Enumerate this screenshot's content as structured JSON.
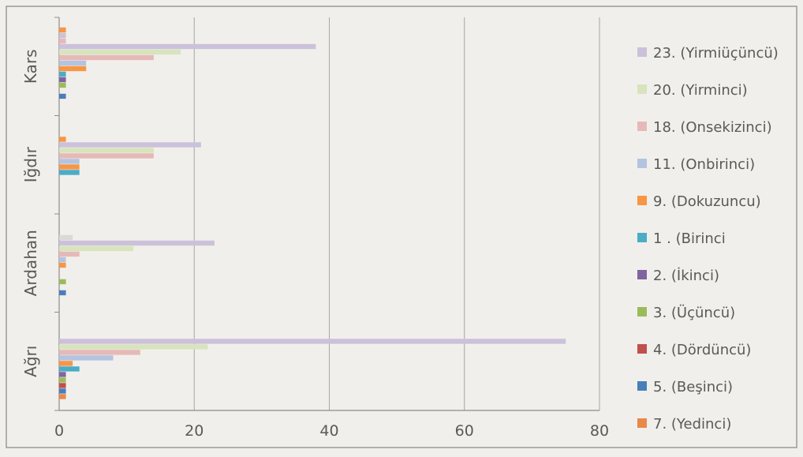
{
  "chart_data": {
    "type": "bar",
    "orientation": "horizontal",
    "categories": [
      "Ağrı",
      "Ardahan",
      "Iğdır",
      "Kars"
    ],
    "xlim": [
      0,
      80
    ],
    "xticks": [
      "0",
      "20",
      "40",
      "60",
      "80"
    ],
    "grid": true,
    "legend_position": "right",
    "series": [
      {
        "name": "7. (Yedinci)",
        "color": "#e8894a",
        "values": [
          1,
          0,
          0,
          0
        ]
      },
      {
        "name": "5. (Beşinci)",
        "color": "#4a7ebb",
        "values": [
          1,
          1,
          0,
          1
        ]
      },
      {
        "name": "4. (Dördüncü)",
        "color": "#c0504d",
        "values": [
          1,
          0,
          0,
          0
        ]
      },
      {
        "name": "3. (Üçüncü)",
        "color": "#9bbb59",
        "values": [
          1,
          1,
          0,
          1
        ]
      },
      {
        "name": "2. (İkinci)",
        "color": "#8064a2",
        "values": [
          1,
          0,
          0,
          1
        ]
      },
      {
        "name": "1 . (Birinci",
        "color": "#4bacc6",
        "values": [
          3,
          0,
          3,
          1
        ]
      },
      {
        "name": "9. (Dokuzuncu)",
        "color": "#f79646",
        "values": [
          2,
          1,
          3,
          4
        ]
      },
      {
        "name": "11. (Onbirinci)",
        "color": "#b3c4e0",
        "values": [
          8,
          1,
          3,
          4
        ]
      },
      {
        "name": "18. (Onsekizinci)",
        "color": "#e6b9b8",
        "values": [
          12,
          3,
          14,
          14
        ]
      },
      {
        "name": "20. (Yirminci)",
        "color": "#d7e4bd",
        "values": [
          22,
          11,
          14,
          18
        ]
      },
      {
        "name": "23. (Yirmiüçüncü)",
        "color": "#ccc1da",
        "values": [
          75,
          23,
          21,
          38
        ]
      }
    ],
    "extra_bars": [
      {
        "category": "Kars",
        "color": "#e6b9b8",
        "value": 1
      },
      {
        "category": "Kars",
        "color": "#ccc1da",
        "value": 1
      },
      {
        "category": "Kars",
        "color": "#f79646",
        "value": 1
      },
      {
        "category": "Iğdır",
        "color": "#f79646",
        "value": 1
      },
      {
        "category": "Ardahan",
        "color": "#d9d9d9",
        "value": 2
      }
    ],
    "legend": [
      {
        "label": "23. (Yirmiüçüncü)",
        "color": "#ccc1da"
      },
      {
        "label": "20. (Yirminci)",
        "color": "#d7e4bd"
      },
      {
        "label": "18. (Onsekizinci)",
        "color": "#e6b9b8"
      },
      {
        "label": "11. (Onbirinci)",
        "color": "#b3c4e0"
      },
      {
        "label": "9. (Dokuzuncu)",
        "color": "#f79646"
      },
      {
        "label": "1 . (Birinci",
        "color": "#4bacc6"
      },
      {
        "label": "2. (İkinci)",
        "color": "#8064a2"
      },
      {
        "label": "3. (Üçüncü)",
        "color": "#9bbb59"
      },
      {
        "label": "4. (Dördüncü)",
        "color": "#c0504d"
      },
      {
        "label": "5. (Beşinci)",
        "color": "#4a7ebb"
      },
      {
        "label": "7. (Yedinci)",
        "color": "#e8894a"
      }
    ]
  }
}
